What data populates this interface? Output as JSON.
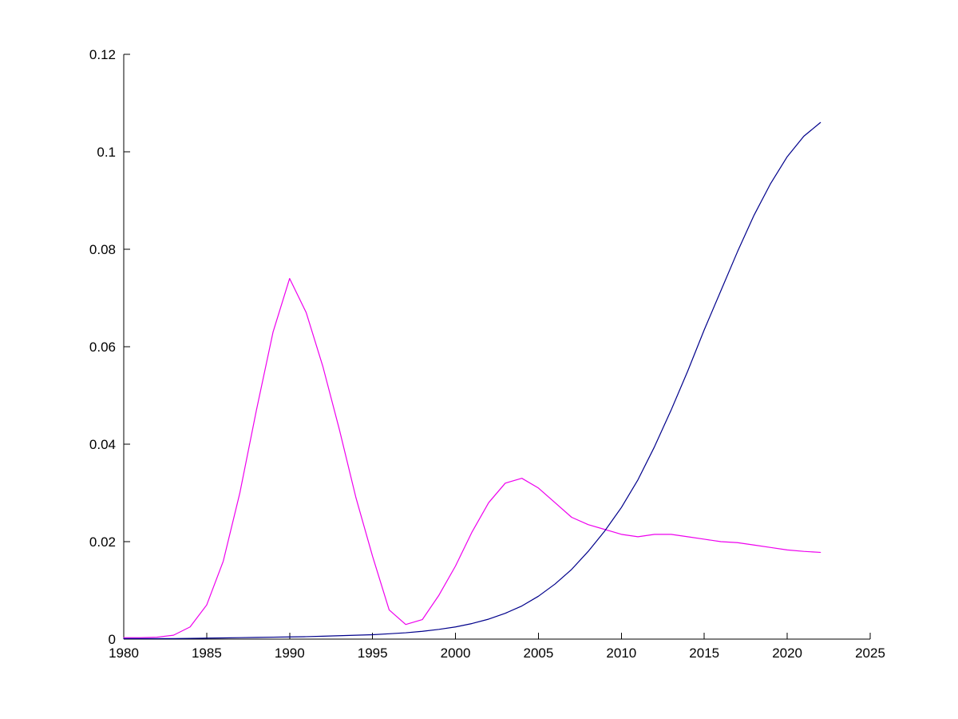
{
  "figure": {
    "background_color": "#ffffff",
    "axis_color": "#000000"
  },
  "chart_data": {
    "type": "line",
    "title": "",
    "xlabel": "",
    "ylabel": "",
    "grid": false,
    "legend": null,
    "xlim": [
      1980,
      2025
    ],
    "ylim": [
      0,
      0.12
    ],
    "xticks": [
      1980,
      1985,
      1990,
      1995,
      2000,
      2005,
      2010,
      2015,
      2020,
      2025
    ],
    "xtick_labels": [
      "1980",
      "1985",
      "1990",
      "1995",
      "2000",
      "2005",
      "2010",
      "2015",
      "2020",
      "2025"
    ],
    "yticks": [
      0,
      0.02,
      0.04,
      0.06,
      0.08,
      0.1,
      0.12
    ],
    "ytick_labels": [
      "0",
      "0.02",
      "0.04",
      "0.06",
      "0.08",
      "0.1",
      "0.12"
    ],
    "series": [
      {
        "name": "magenta-line",
        "color": "#EE00EE",
        "x": [
          1980,
          1981,
          1982,
          1983,
          1984,
          1985,
          1986,
          1987,
          1988,
          1989,
          1990,
          1991,
          1992,
          1993,
          1994,
          1995,
          1996,
          1997,
          1998,
          1999,
          2000,
          2001,
          2002,
          2003,
          2004,
          2005,
          2006,
          2007,
          2008,
          2009,
          2010,
          2011,
          2012,
          2013,
          2014,
          2015,
          2016,
          2017,
          2018,
          2019,
          2020,
          2021,
          2022
        ],
        "y": [
          0.0003,
          0.0003,
          0.0004,
          0.0008,
          0.0025,
          0.007,
          0.016,
          0.03,
          0.047,
          0.063,
          0.074,
          0.067,
          0.056,
          0.043,
          0.029,
          0.017,
          0.006,
          0.003,
          0.004,
          0.009,
          0.015,
          0.022,
          0.028,
          0.032,
          0.033,
          0.031,
          0.028,
          0.025,
          0.0235,
          0.0225,
          0.0215,
          0.021,
          0.0215,
          0.0215,
          0.021,
          0.0205,
          0.02,
          0.0198,
          0.0193,
          0.0188,
          0.0183,
          0.018,
          0.0178
        ]
      },
      {
        "name": "blue-line",
        "color": "#00008B",
        "x": [
          1980,
          1981,
          1982,
          1983,
          1984,
          1985,
          1986,
          1987,
          1988,
          1989,
          1990,
          1991,
          1992,
          1993,
          1994,
          1995,
          1996,
          1997,
          1998,
          1999,
          2000,
          2001,
          2002,
          2003,
          2004,
          2005,
          2006,
          2007,
          2008,
          2009,
          2010,
          2011,
          2012,
          2013,
          2014,
          2015,
          2016,
          2017,
          2018,
          2019,
          2020,
          2021,
          2022
        ],
        "y": [
          0.0001,
          0.0001,
          0.0001,
          0.0001,
          0.00015,
          0.0002,
          0.00025,
          0.0003,
          0.00035,
          0.0004,
          0.00045,
          0.0005,
          0.0006,
          0.0007,
          0.0008,
          0.0009,
          0.0011,
          0.0013,
          0.0016,
          0.002,
          0.0025,
          0.0032,
          0.0041,
          0.0053,
          0.0068,
          0.0088,
          0.0113,
          0.0143,
          0.018,
          0.0222,
          0.027,
          0.0327,
          0.0395,
          0.047,
          0.055,
          0.0635,
          0.0715,
          0.0795,
          0.087,
          0.0935,
          0.099,
          0.1032,
          0.106
        ]
      }
    ]
  }
}
